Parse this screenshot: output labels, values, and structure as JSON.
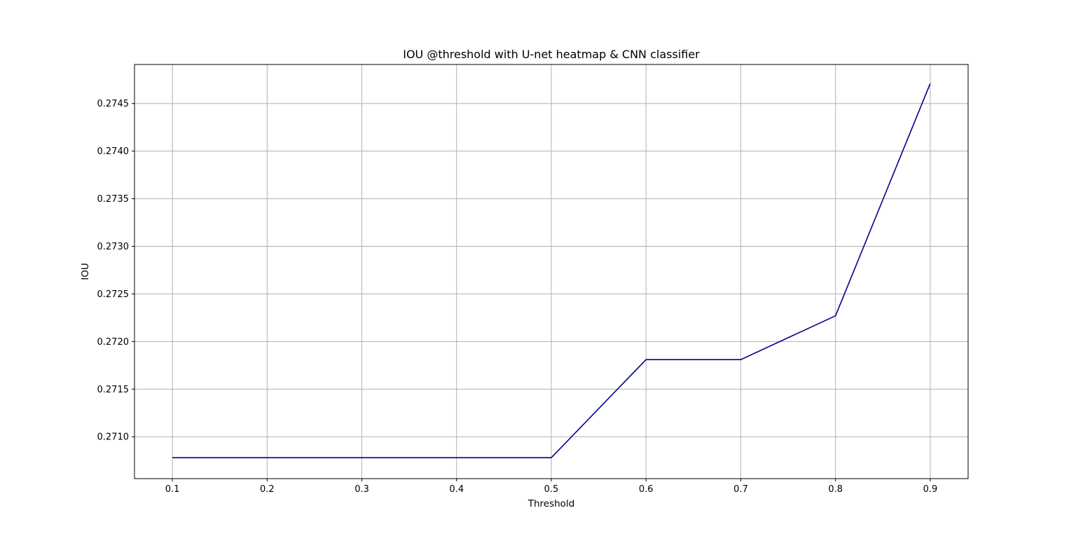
{
  "chart_data": {
    "type": "line",
    "title": "IOU @threshold with U-net heatmap & CNN classifier",
    "xlabel": "Threshold",
    "ylabel": "IOU",
    "x": [
      0.1,
      0.2,
      0.3,
      0.4,
      0.5,
      0.6,
      0.7,
      0.8,
      0.9
    ],
    "series": [
      {
        "values": [
          0.27078,
          0.27078,
          0.27078,
          0.27078,
          0.27078,
          0.27181,
          0.27181,
          0.27227,
          0.27471
        ],
        "color": "#00008b"
      }
    ],
    "xlim": [
      0.06,
      0.94
    ],
    "ylim": [
      0.27056,
      0.27491
    ],
    "xticks": [
      "0.1",
      "0.2",
      "0.3",
      "0.4",
      "0.5",
      "0.6",
      "0.7",
      "0.8",
      "0.9"
    ],
    "yticks": [
      "0.2710",
      "0.2715",
      "0.2720",
      "0.2725",
      "0.2730",
      "0.2735",
      "0.2740",
      "0.2745"
    ],
    "grid": true,
    "grid_color": "#b0b0b0"
  }
}
